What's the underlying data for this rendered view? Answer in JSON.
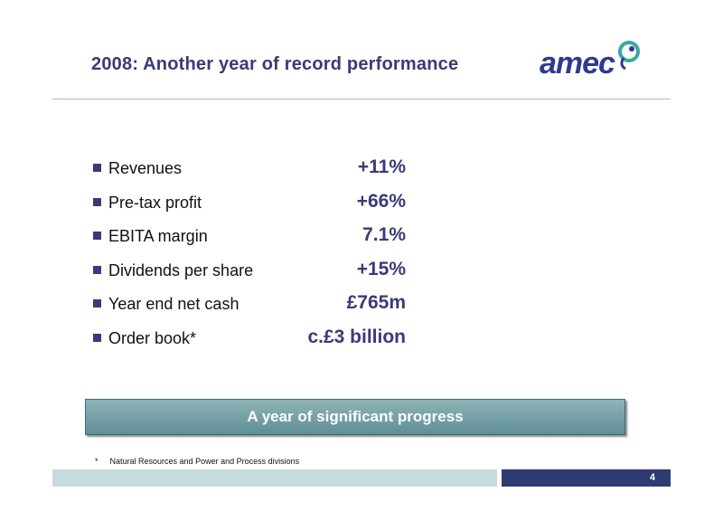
{
  "slide": {
    "title": "2008:  Another year of record performance",
    "logo_text": "amec",
    "metrics": [
      {
        "label": "Revenues",
        "value": "+11%"
      },
      {
        "label": "Pre-tax profit",
        "value": "+66%"
      },
      {
        "label": "EBITA margin",
        "value": "7.1%"
      },
      {
        "label": "Dividends per share",
        "value": "+15%"
      },
      {
        "label": "Year end net cash",
        "value": "£765m"
      },
      {
        "label": "Order book*",
        "value": "c.£3 billion"
      }
    ],
    "banner_text": "A year of significant progress",
    "footnote_mark": "*",
    "footnote_text": "Natural Resources and Power and Process divisions",
    "page_number": "4"
  },
  "colors": {
    "title": "#3a3a78",
    "bullet": "#3a3a78",
    "banner_top": "#8fb4b8",
    "banner_bottom": "#5f8f96",
    "footer_light": "#c7dade",
    "footer_dark": "#2e3a72",
    "logo_blue": "#2f3a8f",
    "logo_teal": "#3aa7a0"
  }
}
